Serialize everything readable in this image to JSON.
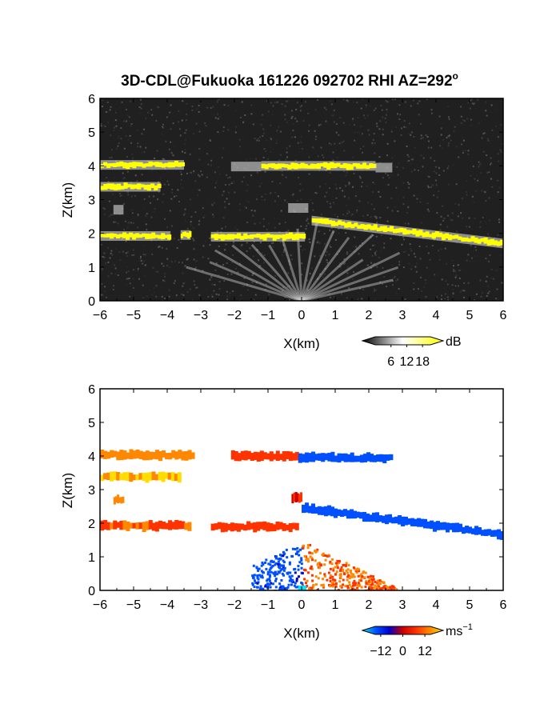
{
  "title": "3D-CDL@Fukuoka 161226 092702 RHI AZ=292",
  "title_superscript": "o",
  "chart_data": [
    {
      "type": "heatmap",
      "quantity": "reflectivity",
      "xlabel": "X(km)",
      "ylabel": "Z(km)",
      "xlim": [
        -6,
        6
      ],
      "ylim": [
        0,
        6
      ],
      "xticks": [
        -6,
        -5,
        -4,
        -3,
        -2,
        -1,
        0,
        1,
        2,
        3,
        4,
        5,
        6
      ],
      "yticks": [
        0,
        1,
        2,
        3,
        4,
        5,
        6
      ],
      "background": "#202020",
      "strong_echo_color": "#ffff00",
      "colorbar": {
        "unit": "dB",
        "ticks": [
          6,
          12,
          18
        ],
        "range": [
          0,
          21
        ],
        "colors": [
          "#000000",
          "#ffffff",
          "#ffff00"
        ]
      },
      "layers": [
        {
          "x0": -6.0,
          "x1": -3.5,
          "z": 4.03,
          "kind": "strong"
        },
        {
          "x0": -1.2,
          "x1": 2.2,
          "z": 4.0,
          "kind": "strong"
        },
        {
          "x0": -2.1,
          "x1": -1.2,
          "z": 3.98,
          "kind": "faint"
        },
        {
          "x0": 2.2,
          "x1": 2.7,
          "z": 3.95,
          "kind": "faint"
        },
        {
          "x0": -6.0,
          "x1": -4.2,
          "z": 3.38,
          "kind": "strong"
        },
        {
          "x0": -5.6,
          "x1": -5.3,
          "z": 2.7,
          "kind": "faint"
        },
        {
          "x0": -6.0,
          "x1": -3.9,
          "z": 1.92,
          "kind": "strong"
        },
        {
          "x0": -3.6,
          "x1": -3.3,
          "z": 1.95,
          "kind": "strong"
        },
        {
          "x0": -2.7,
          "x1": 0.1,
          "z": 1.9,
          "kind": "strong"
        },
        {
          "x0": 0.3,
          "x1": 6.0,
          "z0": 2.38,
          "z1": 1.7,
          "kind": "strong"
        },
        {
          "x0": -0.4,
          "x1": 0.2,
          "z": 2.75,
          "kind": "faint"
        }
      ]
    },
    {
      "type": "heatmap",
      "quantity": "radial velocity",
      "xlabel": "X(km)",
      "ylabel": "Z(km)",
      "xlim": [
        -6,
        6
      ],
      "ylim": [
        0,
        6
      ],
      "xticks": [
        -6,
        -5,
        -4,
        -3,
        -2,
        -1,
        0,
        1,
        2,
        3,
        4,
        5,
        6
      ],
      "yticks": [
        0,
        1,
        2,
        3,
        4,
        5,
        6
      ],
      "colorbar": {
        "unit": "ms",
        "unit_exponent": "−1",
        "ticks": [
          "−12",
          "0",
          "12"
        ],
        "range": [
          -15,
          15
        ],
        "colors": [
          "#00e5ff",
          "#0050ff",
          "#0000cc",
          "#cc0000",
          "#ff3300",
          "#ff8800",
          "#ffdd00"
        ]
      },
      "layers": [
        {
          "x0": -6.0,
          "x1": -3.2,
          "z": 4.03,
          "velocity": 11
        },
        {
          "x0": -2.1,
          "x1": -0.1,
          "z": 4.0,
          "velocity": 6
        },
        {
          "x0": -0.1,
          "x1": 2.7,
          "z": 3.95,
          "velocity": -9
        },
        {
          "x0": -6.0,
          "x1": -3.6,
          "z": 3.38,
          "velocity": 13
        },
        {
          "x0": -5.6,
          "x1": -5.3,
          "z": 2.7,
          "velocity": 10
        },
        {
          "x0": -6.0,
          "x1": -3.3,
          "z": 1.92,
          "velocity": 7
        },
        {
          "x0": -2.7,
          "x1": -0.1,
          "z": 1.9,
          "velocity": 5
        },
        {
          "x0": -0.3,
          "x1": 0.0,
          "z": 2.75,
          "velocity": 2
        },
        {
          "x0": 0.0,
          "x1": 6.0,
          "z0": 2.45,
          "z1": 1.65,
          "velocity": -10
        }
      ],
      "near_field": {
        "negative_x_range": [
          -1.5,
          0
        ],
        "positive_x_range": [
          0,
          2.8
        ],
        "max_z": 1.5
      }
    }
  ]
}
